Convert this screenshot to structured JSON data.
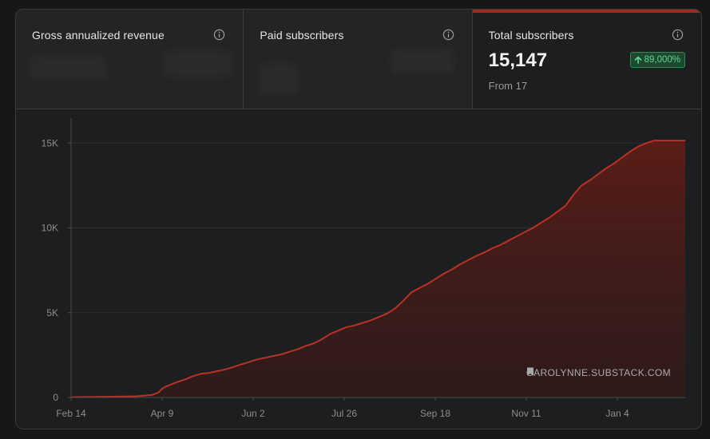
{
  "tabs": [
    {
      "label": "Gross annualized revenue"
    },
    {
      "label": "Paid subscribers"
    },
    {
      "label": "Total subscribers",
      "value": "15,147",
      "from": "From 17",
      "change": "89,000%"
    }
  ],
  "watermark": "CAROLYNNE.SUBSTACK.COM",
  "colors": {
    "accent": "#9e2a22",
    "line": "#b83227",
    "badge_text": "#61d38f"
  },
  "chart_data": {
    "type": "area",
    "xlabel": "",
    "ylabel": "",
    "x_ticks": [
      "Feb 14",
      "Apr 9",
      "Jun 2",
      "Jul 26",
      "Sep 18",
      "Nov 11",
      "Jan 4"
    ],
    "y_ticks": [
      "0",
      "5K",
      "10K",
      "15K"
    ],
    "y_tick_values": [
      0,
      5000,
      10000,
      15000
    ],
    "ylim": [
      0,
      16000
    ],
    "x_range_days": [
      0,
      379
    ],
    "grid": true,
    "series": [
      {
        "x_days": [
          0,
          20,
          40,
          50,
          54,
          56,
          58,
          60,
          65,
          70,
          75,
          80,
          85,
          90,
          95,
          100,
          105,
          110,
          115,
          120,
          125,
          130,
          135,
          140,
          145,
          150,
          155,
          160,
          165,
          170,
          175,
          180,
          185,
          190,
          195,
          200,
          205,
          210,
          215,
          220,
          225,
          230,
          235,
          240,
          245,
          250,
          255,
          260,
          265,
          270,
          275,
          280,
          285,
          290,
          295,
          300,
          305,
          310,
          315,
          320,
          325,
          330,
          335,
          340,
          345,
          350,
          355,
          360,
          365,
          370,
          375,
          379
        ],
        "values": [
          17,
          40,
          70,
          150,
          300,
          500,
          620,
          700,
          900,
          1050,
          1250,
          1400,
          1450,
          1550,
          1650,
          1800,
          1950,
          2100,
          2250,
          2350,
          2450,
          2550,
          2700,
          2850,
          3050,
          3200,
          3450,
          3750,
          3950,
          4150,
          4250,
          4400,
          4550,
          4750,
          4950,
          5250,
          5700,
          6200,
          6450,
          6700,
          7000,
          7300,
          7550,
          7850,
          8100,
          8350,
          8550,
          8800,
          9000,
          9250,
          9500,
          9750,
          10000,
          10300,
          10600,
          10950,
          11300,
          11950,
          12500,
          12800,
          13150,
          13500,
          13800,
          14150,
          14500,
          14800,
          15000,
          15147,
          15147,
          15147,
          15147,
          15147
        ]
      }
    ]
  }
}
